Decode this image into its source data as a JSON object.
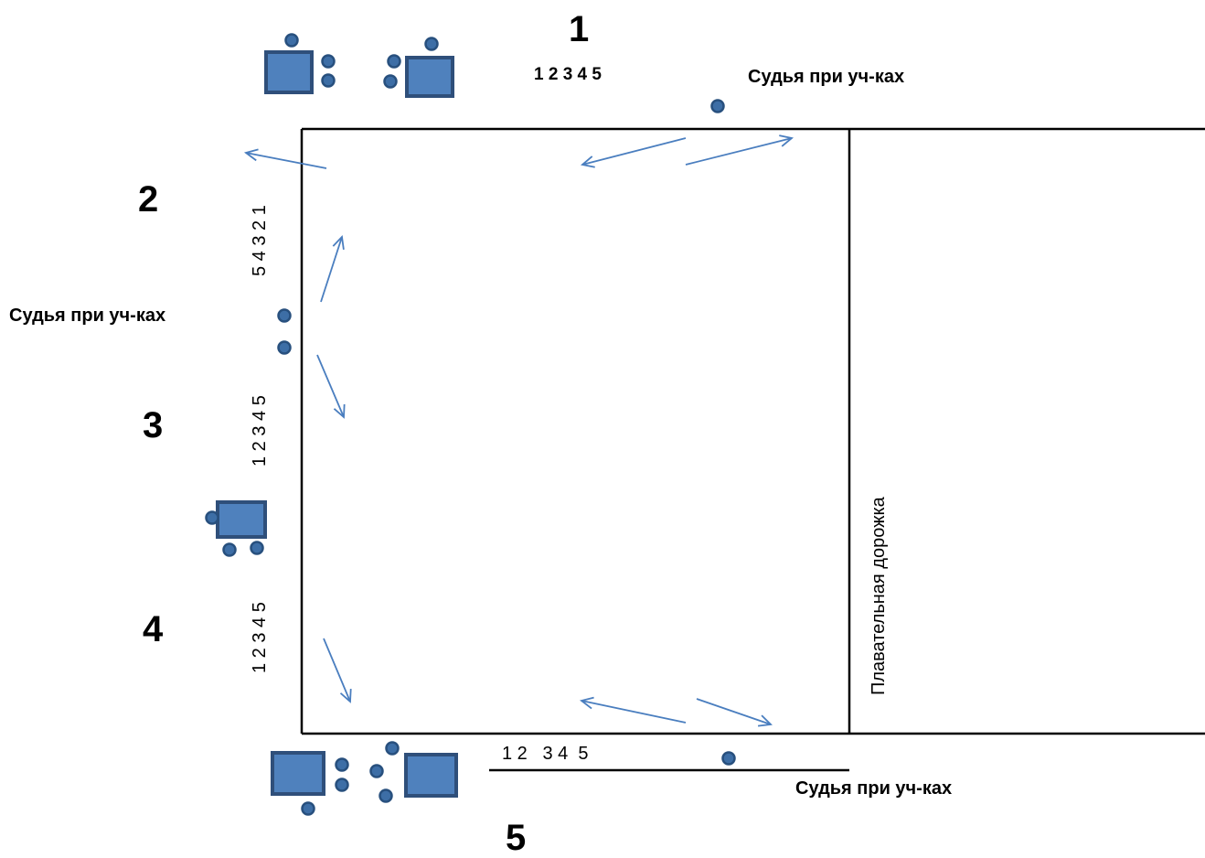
{
  "zones": {
    "z1": "1",
    "z2": "2",
    "z3": "3",
    "z4": "4",
    "z5": "5"
  },
  "lane_numbers": {
    "top": "1 2 3 4 5",
    "left_upper": "5 4 3 2 1",
    "left_middle": "1 2 3 4 5",
    "left_lower": "1 2 3 4 5",
    "bottom": "1 2   3 4  5"
  },
  "judge_labels": {
    "top": "Судья при уч-ках",
    "left": "Судья при уч-ках",
    "bottom": "Судья при уч-ках"
  },
  "swim_lane_label": "Плавательная дорожка",
  "colors": {
    "line": "#000000",
    "arrow": "#4a7ebf",
    "table_fill": "#4f81bd",
    "table_stroke": "#2f4f7a",
    "person_fill": "#3d6ea6",
    "person_stroke": "#28507e"
  },
  "icons": [
    "judge-table-icon",
    "person-icon",
    "arrow-icon"
  ]
}
